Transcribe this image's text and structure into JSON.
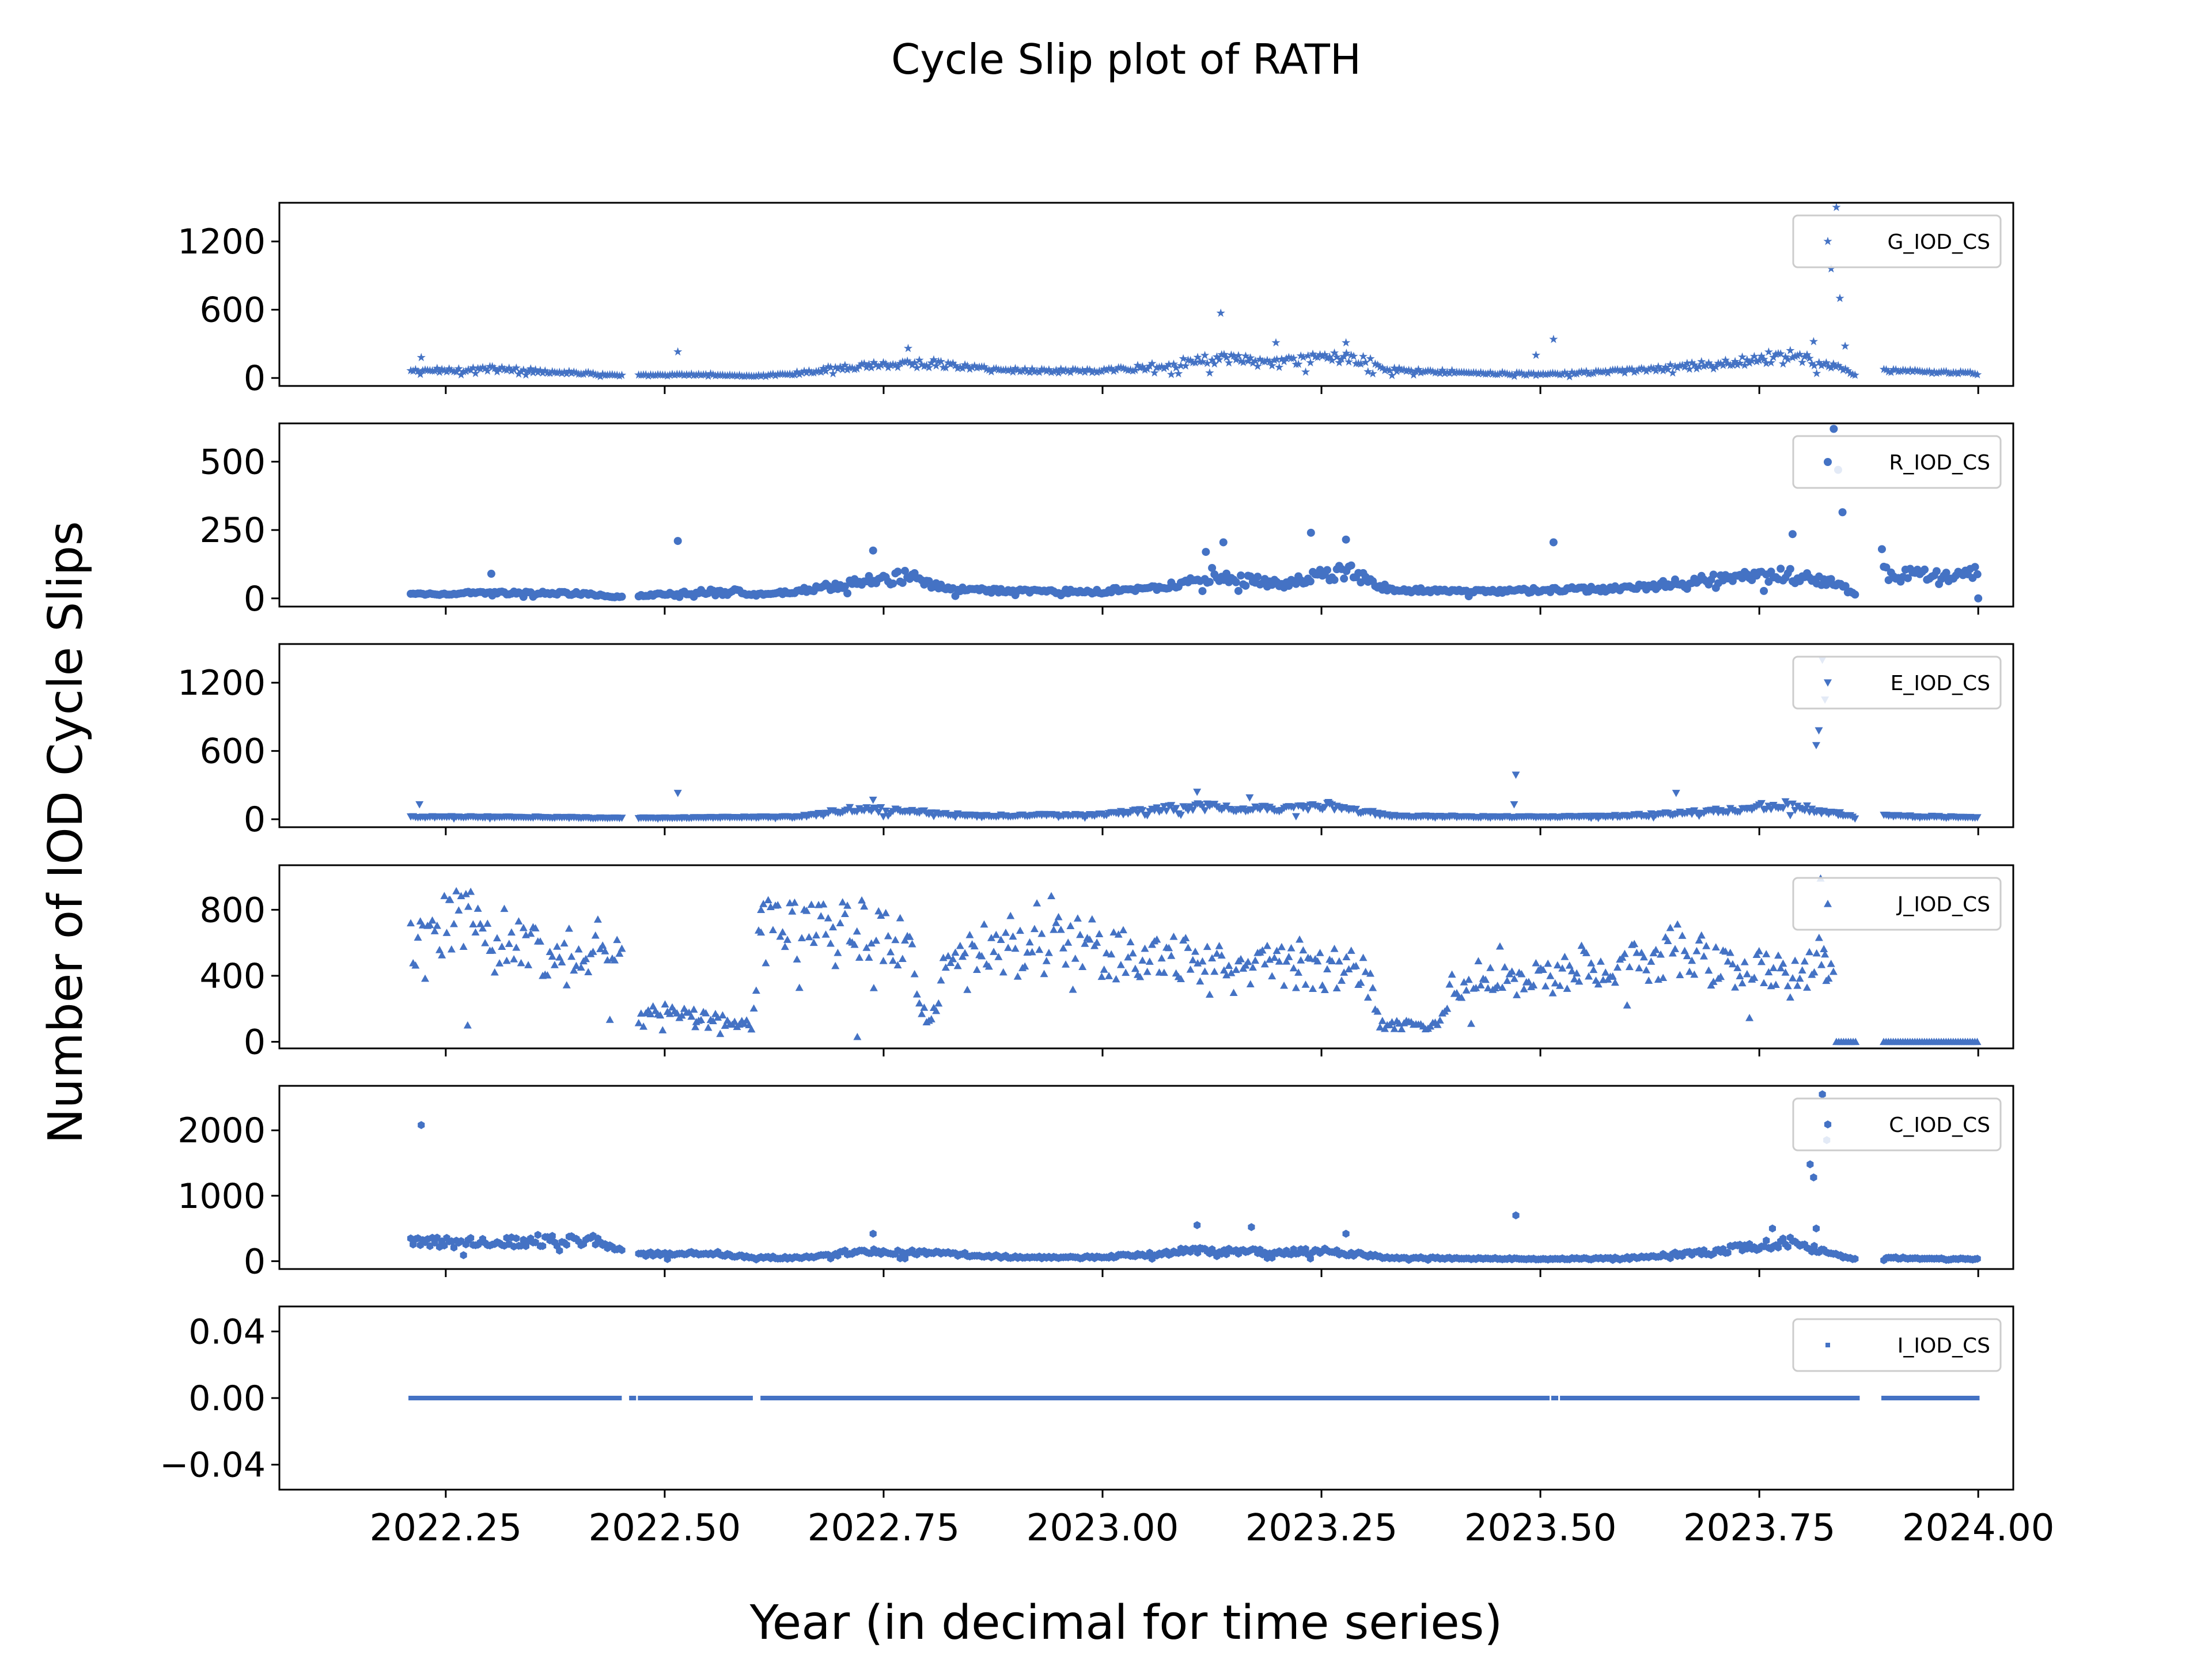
{
  "chart_data": {
    "type": "scatter",
    "title": "Cycle Slip plot of RATH",
    "xlabel": "Year (in decimal for time series)",
    "ylabel": "Number of IOD Cycle Slips",
    "xlim": [
      2022.06,
      2024.04
    ],
    "xticks": [
      2022.25,
      2022.5,
      2022.75,
      2023.0,
      2023.25,
      2023.5,
      2023.75,
      2024.0
    ],
    "xtick_labels": [
      "2022.25",
      "2022.50",
      "2022.75",
      "2023.00",
      "2023.25",
      "2023.50",
      "2023.75",
      "2024.00"
    ],
    "color": "#4472c4",
    "legend_position": "upper right",
    "grid": false,
    "panels": [
      {
        "name": "G_IOD_CS",
        "marker": "star",
        "ylim": [
          -70,
          1540
        ],
        "yticks": [
          0,
          600,
          1200
        ],
        "ytick_labels": [
          "0",
          "600",
          "1200"
        ],
        "profile": [
          [
            2022.21,
            60
          ],
          [
            2022.3,
            80
          ],
          [
            2022.4,
            45
          ],
          [
            2022.45,
            20
          ],
          [
            2022.55,
            30
          ],
          [
            2022.6,
            15
          ],
          [
            2022.65,
            40
          ],
          [
            2022.72,
            110
          ],
          [
            2022.8,
            130
          ],
          [
            2022.88,
            70
          ],
          [
            2023.0,
            60
          ],
          [
            2023.08,
            120
          ],
          [
            2023.13,
            170
          ],
          [
            2023.2,
            130
          ],
          [
            2023.28,
            200
          ],
          [
            2023.33,
            70
          ],
          [
            2023.45,
            40
          ],
          [
            2023.5,
            30
          ],
          [
            2023.6,
            60
          ],
          [
            2023.7,
            120
          ],
          [
            2023.78,
            200
          ],
          [
            2023.84,
            100
          ],
          [
            2023.86,
            20
          ],
          [
            2023.89,
            60
          ],
          [
            2024.0,
            40
          ]
        ],
        "spikes": [
          [
            2022.222,
            180
          ],
          [
            2022.515,
            230
          ],
          [
            2022.778,
            260
          ],
          [
            2023.135,
            570
          ],
          [
            2023.198,
            310
          ],
          [
            2023.278,
            310
          ],
          [
            2023.495,
            200
          ],
          [
            2023.515,
            340
          ],
          [
            2023.812,
            320
          ],
          [
            2023.832,
            960
          ],
          [
            2023.838,
            1500
          ],
          [
            2023.842,
            700
          ],
          [
            2023.848,
            280
          ]
        ]
      },
      {
        "name": "R_IOD_CS",
        "marker": "circle",
        "ylim": [
          -30,
          640
        ],
        "yticks": [
          0,
          250,
          500
        ],
        "ytick_labels": [
          "0",
          "250",
          "500"
        ],
        "profile": [
          [
            2022.21,
            15
          ],
          [
            2022.3,
            20
          ],
          [
            2022.4,
            18
          ],
          [
            2022.45,
            5
          ],
          [
            2022.52,
            20
          ],
          [
            2022.58,
            30
          ],
          [
            2022.6,
            12
          ],
          [
            2022.65,
            25
          ],
          [
            2022.72,
            60
          ],
          [
            2022.78,
            80
          ],
          [
            2022.82,
            35
          ],
          [
            2022.9,
            25
          ],
          [
            2023.0,
            25
          ],
          [
            2023.08,
            50
          ],
          [
            2023.13,
            90
          ],
          [
            2023.2,
            50
          ],
          [
            2023.28,
            100
          ],
          [
            2023.33,
            30
          ],
          [
            2023.45,
            25
          ],
          [
            2023.5,
            30
          ],
          [
            2023.6,
            35
          ],
          [
            2023.7,
            70
          ],
          [
            2023.78,
            90
          ],
          [
            2023.84,
            50
          ],
          [
            2023.86,
            15
          ],
          [
            2023.89,
            90
          ],
          [
            2023.95,
            80
          ],
          [
            2024.0,
            90
          ]
        ],
        "spikes": [
          [
            2022.302,
            90
          ],
          [
            2022.515,
            210
          ],
          [
            2022.738,
            175
          ],
          [
            2023.118,
            170
          ],
          [
            2023.138,
            205
          ],
          [
            2023.238,
            240
          ],
          [
            2023.278,
            215
          ],
          [
            2023.515,
            205
          ],
          [
            2023.788,
            235
          ],
          [
            2023.835,
            620
          ],
          [
            2023.84,
            470
          ],
          [
            2023.845,
            315
          ],
          [
            2023.89,
            180
          ],
          [
            2024.0,
            0
          ]
        ]
      },
      {
        "name": "E_IOD_CS",
        "marker": "triangle-down",
        "ylim": [
          -70,
          1540
        ],
        "yticks": [
          0,
          600,
          1200
        ],
        "ytick_labels": [
          "0",
          "600",
          "1200"
        ],
        "profile": [
          [
            2022.21,
            20
          ],
          [
            2022.3,
            20
          ],
          [
            2022.4,
            15
          ],
          [
            2022.45,
            10
          ],
          [
            2022.55,
            15
          ],
          [
            2022.65,
            20
          ],
          [
            2022.72,
            90
          ],
          [
            2022.78,
            70
          ],
          [
            2022.85,
            30
          ],
          [
            2023.0,
            40
          ],
          [
            2023.1,
            110
          ],
          [
            2023.18,
            90
          ],
          [
            2023.26,
            110
          ],
          [
            2023.33,
            30
          ],
          [
            2023.45,
            20
          ],
          [
            2023.5,
            20
          ],
          [
            2023.6,
            30
          ],
          [
            2023.7,
            70
          ],
          [
            2023.78,
            130
          ],
          [
            2023.84,
            40
          ],
          [
            2023.86,
            20
          ],
          [
            2023.89,
            30
          ],
          [
            2024.0,
            15
          ]
        ],
        "spikes": [
          [
            2022.22,
            130
          ],
          [
            2022.515,
            230
          ],
          [
            2022.738,
            170
          ],
          [
            2023.108,
            240
          ],
          [
            2023.168,
            190
          ],
          [
            2023.258,
            150
          ],
          [
            2023.472,
            390
          ],
          [
            2023.47,
            130
          ],
          [
            2023.655,
            230
          ],
          [
            2023.815,
            650
          ],
          [
            2023.818,
            780
          ],
          [
            2023.825,
            1050
          ],
          [
            2023.822,
            1400
          ],
          [
            2023.842,
            60
          ]
        ]
      },
      {
        "name": "J_IOD_CS",
        "marker": "triangle-up",
        "ylim": [
          -40,
          1070
        ],
        "yticks": [
          0,
          400,
          800
        ],
        "ytick_labels": [
          "0",
          "400",
          "800"
        ],
        "profile": [
          [
            2022.21,
            600
          ],
          [
            2022.27,
            760
          ],
          [
            2022.33,
            640
          ],
          [
            2022.37,
            520
          ],
          [
            2022.42,
            600
          ],
          [
            2022.45,
            480
          ],
          [
            2022.47,
            160
          ],
          [
            2022.52,
            200
          ],
          [
            2022.57,
            120
          ],
          [
            2022.6,
            100
          ],
          [
            2022.61,
            680
          ],
          [
            2022.68,
            640
          ],
          [
            2022.75,
            700
          ],
          [
            2022.78,
            560
          ],
          [
            2022.8,
            80
          ],
          [
            2022.83,
            600
          ],
          [
            2022.9,
            600
          ],
          [
            2022.95,
            700
          ],
          [
            2023.0,
            560
          ],
          [
            2023.05,
            480
          ],
          [
            2023.1,
            500
          ],
          [
            2023.15,
            420
          ],
          [
            2023.2,
            460
          ],
          [
            2023.25,
            440
          ],
          [
            2023.3,
            420
          ],
          [
            2023.32,
            100
          ],
          [
            2023.38,
            100
          ],
          [
            2023.4,
            330
          ],
          [
            2023.45,
            460
          ],
          [
            2023.5,
            360
          ],
          [
            2023.55,
            460
          ],
          [
            2023.62,
            520
          ],
          [
            2023.66,
            560
          ],
          [
            2023.7,
            460
          ],
          [
            2023.76,
            430
          ],
          [
            2023.8,
            450
          ],
          [
            2023.83,
            520
          ]
        ],
        "spikes": [
          [
            2022.255,
            860
          ],
          [
            2022.275,
            100
          ],
          [
            2022.535,
            90
          ],
          [
            2022.61,
            800
          ],
          [
            2022.72,
            30
          ],
          [
            2023.225,
            620
          ],
          [
            2023.82,
            990
          ],
          [
            2023.825,
            530
          ]
        ],
        "zeros": [
          [
            2023.838,
            2023.862
          ],
          [
            2023.892,
            2024.0
          ]
        ]
      },
      {
        "name": "C_IOD_CS",
        "marker": "hexagon",
        "ylim": [
          -120,
          2680
        ],
        "yticks": [
          0,
          1000,
          2000
        ],
        "ytick_labels": [
          "0",
          "1000",
          "2000"
        ],
        "profile": [
          [
            2022.21,
            280
          ],
          [
            2022.3,
            300
          ],
          [
            2022.35,
            330
          ],
          [
            2022.42,
            300
          ],
          [
            2022.45,
            180
          ],
          [
            2022.47,
            100
          ],
          [
            2022.55,
            130
          ],
          [
            2022.6,
            60
          ],
          [
            2022.65,
            50
          ],
          [
            2022.72,
            150
          ],
          [
            2022.8,
            130
          ],
          [
            2022.9,
            60
          ],
          [
            2023.0,
            60
          ],
          [
            2023.1,
            160
          ],
          [
            2023.18,
            140
          ],
          [
            2023.26,
            150
          ],
          [
            2023.33,
            50
          ],
          [
            2023.45,
            40
          ],
          [
            2023.5,
            30
          ],
          [
            2023.6,
            50
          ],
          [
            2023.7,
            150
          ],
          [
            2023.78,
            300
          ],
          [
            2023.84,
            80
          ],
          [
            2023.86,
            30
          ],
          [
            2023.89,
            50
          ],
          [
            2024.0,
            30
          ]
        ],
        "spikes": [
          [
            2022.222,
            2080
          ],
          [
            2022.738,
            420
          ],
          [
            2023.108,
            550
          ],
          [
            2023.17,
            520
          ],
          [
            2023.278,
            420
          ],
          [
            2023.472,
            700
          ],
          [
            2023.765,
            500
          ],
          [
            2023.808,
            1480
          ],
          [
            2023.812,
            1280
          ],
          [
            2023.822,
            2550
          ],
          [
            2023.827,
            1850
          ],
          [
            2023.815,
            500
          ]
        ]
      },
      {
        "name": "I_IOD_CS",
        "marker": "square",
        "ylim": [
          -0.055,
          0.055
        ],
        "yticks": [
          -0.04,
          0,
          0.04
        ],
        "ytick_labels": [
          "−0.04",
          "0.00",
          "0.04"
        ],
        "zeros": [
          [
            2022.21,
            2022.45
          ],
          [
            2022.462,
            2022.465
          ],
          [
            2022.472,
            2022.6
          ],
          [
            2022.612,
            2023.51
          ],
          [
            2023.515,
            2023.518
          ],
          [
            2023.525,
            2023.862
          ],
          [
            2023.892,
            2024.0
          ]
        ]
      }
    ]
  }
}
